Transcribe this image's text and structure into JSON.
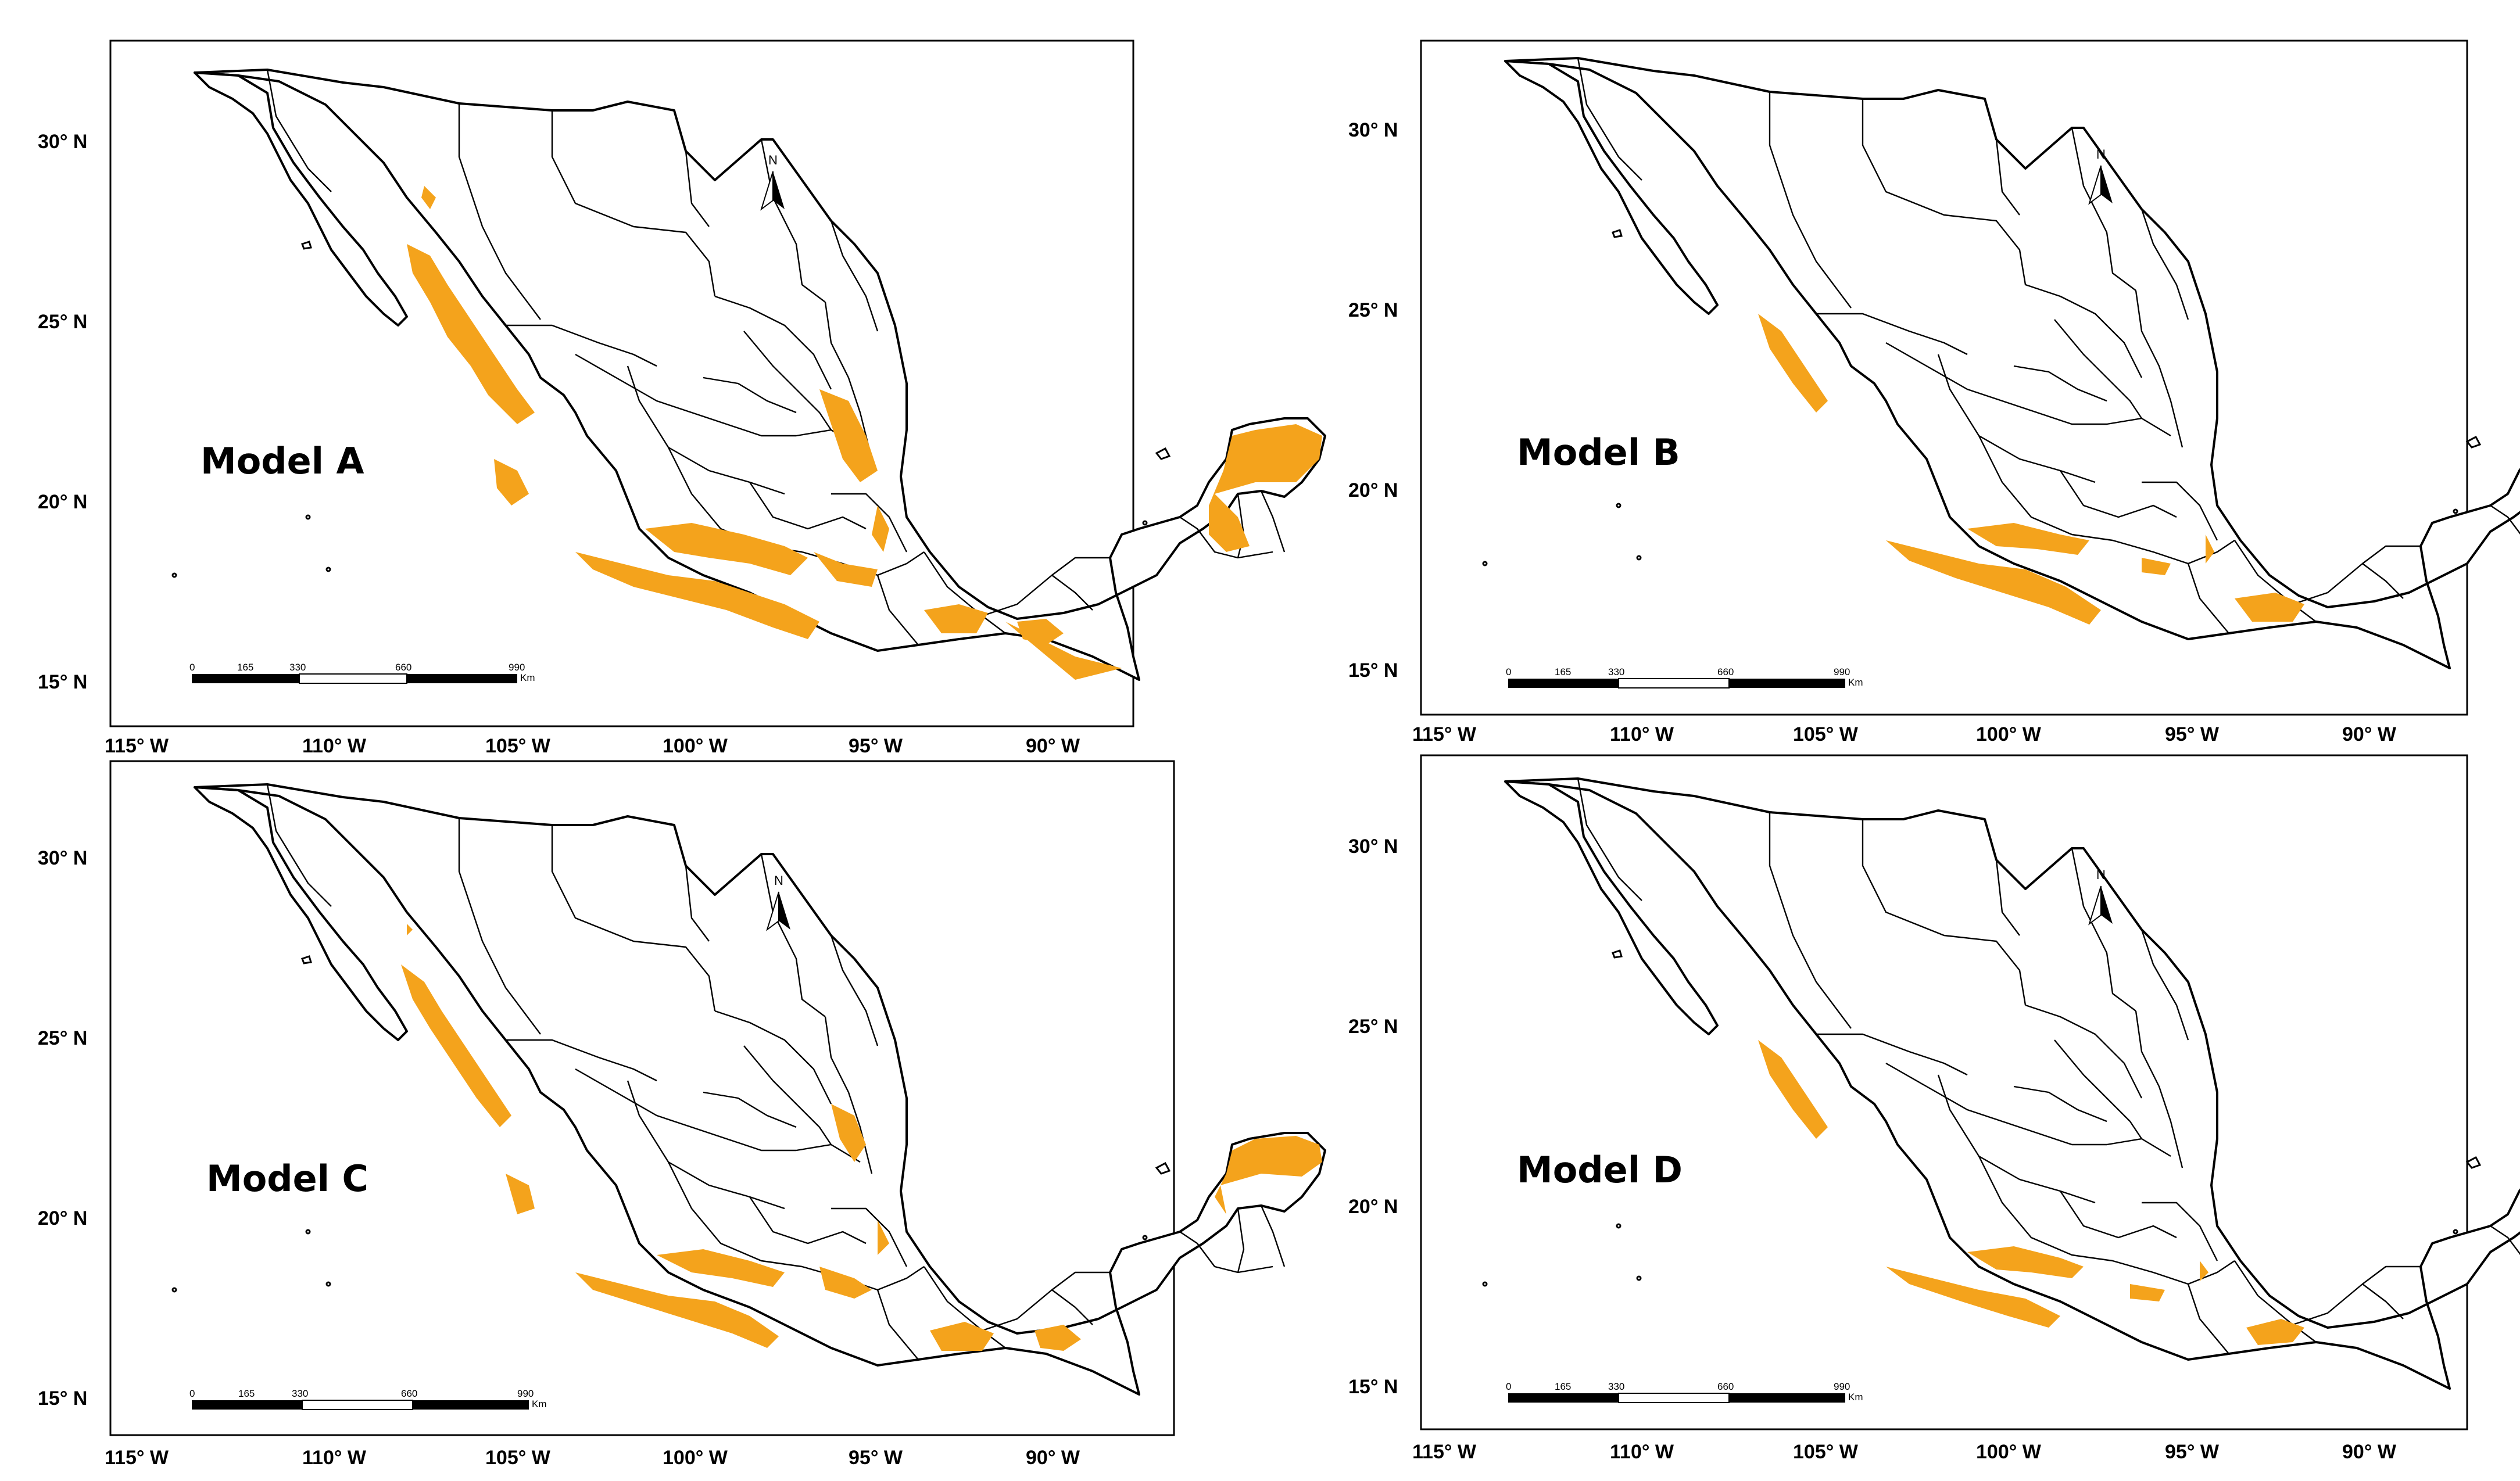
{
  "figure": {
    "panels": [
      {
        "id": "A",
        "label": "Model A"
      },
      {
        "id": "B",
        "label": "Model B"
      },
      {
        "id": "C",
        "label": "Model C"
      },
      {
        "id": "D",
        "label": "Model D"
      }
    ],
    "x_ticks": [
      "115° W",
      "110° W",
      "105° W",
      "100° W",
      "95° W",
      "90° W"
    ],
    "y_ticks": [
      "30° N",
      "25° N",
      "20° N",
      "15° N"
    ],
    "scale_bar": {
      "labels": [
        "0",
        "165",
        "330",
        "660",
        "990"
      ],
      "unit": "Km"
    },
    "north_arrow": {
      "label": "N"
    },
    "colors": {
      "suitable_habitat": "#f4a31c",
      "boundary": "#000000",
      "land": "#ffffff"
    }
  }
}
